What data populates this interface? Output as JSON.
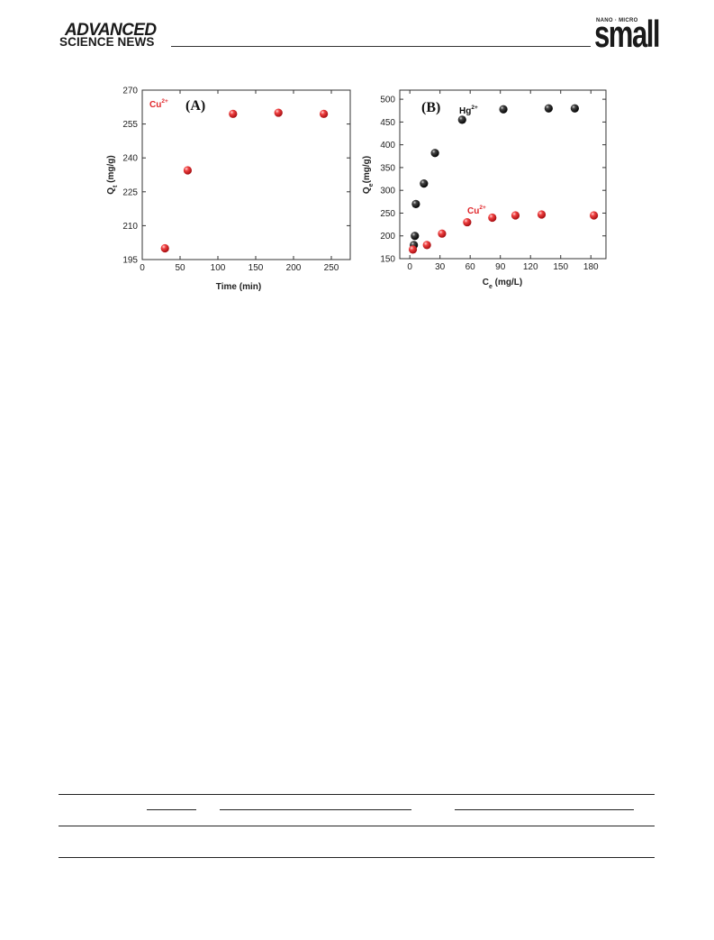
{
  "header": {
    "brand_line1": "ADVANCED",
    "brand_line2": "SCIENCE NEWS",
    "journal_kicker": "NANO · MICRO",
    "journal_name": "small"
  },
  "colors": {
    "cu_series": "#e0262a",
    "hg_series": "#111111",
    "cu_label": "#e0262a"
  },
  "chart_data": [
    {
      "panel": "(A)",
      "type": "scatter",
      "xlabel": "Time (min)",
      "ylabel_main": "Q",
      "ylabel_sub": "t",
      "ylabel_tail": " (mg/g)",
      "xlim": [
        0,
        275
      ],
      "ylim": [
        195,
        270
      ],
      "xticks": [
        0,
        50,
        100,
        150,
        200,
        250
      ],
      "yticks": [
        195,
        210,
        225,
        240,
        255,
        270
      ],
      "grid": false,
      "legend_position": "top-left",
      "series": [
        {
          "name": "Cu",
          "name_sup": "2+",
          "color": "#e0262a",
          "points": [
            {
              "x": 30,
              "y": 200
            },
            {
              "x": 60,
              "y": 234.5
            },
            {
              "x": 120,
              "y": 259.5
            },
            {
              "x": 180,
              "y": 260
            },
            {
              "x": 240,
              "y": 259.5
            }
          ]
        }
      ]
    },
    {
      "panel": "(B)",
      "type": "scatter",
      "xlabel_main": "C",
      "xlabel_sub": "e",
      "xlabel_tail": " (mg/L)",
      "ylabel_main": "Q",
      "ylabel_sub": "e",
      "ylabel_tail": "(mg/g)",
      "xlim": [
        -10,
        195
      ],
      "ylim": [
        150,
        520
      ],
      "xticks": [
        0,
        30,
        60,
        90,
        120,
        150,
        180
      ],
      "yticks": [
        150,
        200,
        250,
        300,
        350,
        400,
        450,
        500
      ],
      "grid": false,
      "series": [
        {
          "name": "Hg",
          "name_sup": "2+",
          "color": "#111111",
          "points": [
            {
              "x": 4,
              "y": 180
            },
            {
              "x": 5,
              "y": 200
            },
            {
              "x": 6,
              "y": 270
            },
            {
              "x": 14,
              "y": 315
            },
            {
              "x": 25,
              "y": 382
            },
            {
              "x": 52,
              "y": 455
            },
            {
              "x": 93,
              "y": 478
            },
            {
              "x": 138,
              "y": 480
            },
            {
              "x": 164,
              "y": 480
            }
          ]
        },
        {
          "name": "Cu",
          "name_sup": "2+",
          "color": "#e0262a",
          "points": [
            {
              "x": 3,
              "y": 170
            },
            {
              "x": 17,
              "y": 180
            },
            {
              "x": 32,
              "y": 205
            },
            {
              "x": 57,
              "y": 230
            },
            {
              "x": 82,
              "y": 240
            },
            {
              "x": 105,
              "y": 245
            },
            {
              "x": 131,
              "y": 247
            },
            {
              "x": 183,
              "y": 245
            }
          ]
        }
      ]
    }
  ]
}
